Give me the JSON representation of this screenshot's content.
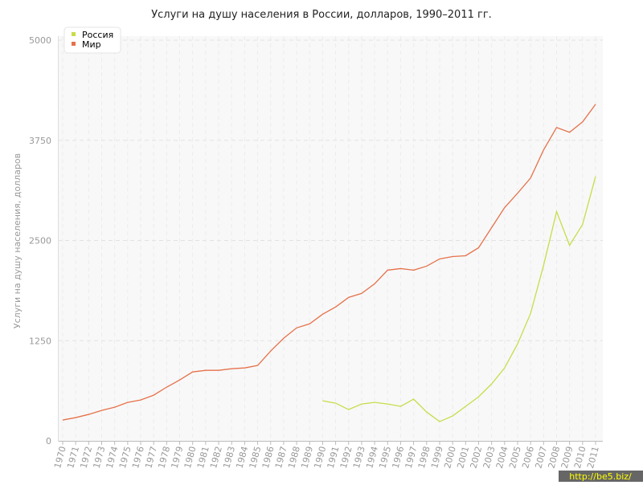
{
  "chart_data": {
    "type": "line",
    "title": "Услуги на душу населения в России, долларов, 1990–2011 гг.",
    "y_label": "Услуги на душу населения, долларов",
    "watermark": "http://be5.biz/",
    "x": [
      1970,
      1971,
      1972,
      1973,
      1974,
      1975,
      1976,
      1977,
      1978,
      1979,
      1980,
      1981,
      1982,
      1983,
      1984,
      1985,
      1986,
      1987,
      1988,
      1989,
      1990,
      1991,
      1992,
      1993,
      1994,
      1995,
      1996,
      1997,
      1998,
      1999,
      2000,
      2001,
      2002,
      2003,
      2004,
      2005,
      2006,
      2007,
      2008,
      2009,
      2010,
      2011
    ],
    "xlim": [
      1970,
      2011
    ],
    "ylim": [
      0,
      5000
    ],
    "yticks": [
      0,
      1250,
      2500,
      3750,
      5000
    ],
    "grid": true,
    "legend": "top-left",
    "series": [
      {
        "name": "Россия",
        "color": "#c8dc4a",
        "values": [
          null,
          null,
          null,
          null,
          null,
          null,
          null,
          null,
          null,
          null,
          null,
          null,
          null,
          null,
          null,
          null,
          null,
          null,
          null,
          null,
          500,
          470,
          390,
          460,
          480,
          460,
          430,
          520,
          360,
          240,
          310,
          430,
          550,
          710,
          910,
          1210,
          1590,
          2190,
          2860,
          2440,
          2700,
          3300
        ]
      },
      {
        "name": "Мир",
        "color": "#e6714a",
        "values": [
          260,
          290,
          330,
          380,
          420,
          480,
          510,
          570,
          670,
          760,
          860,
          880,
          880,
          900,
          910,
          940,
          1120,
          1280,
          1410,
          1460,
          1580,
          1670,
          1790,
          1840,
          1960,
          2130,
          2150,
          2130,
          2180,
          2270,
          2300,
          2310,
          2410,
          2660,
          2910,
          3090,
          3280,
          3630,
          3910,
          3850,
          3980,
          4200
        ]
      }
    ]
  }
}
